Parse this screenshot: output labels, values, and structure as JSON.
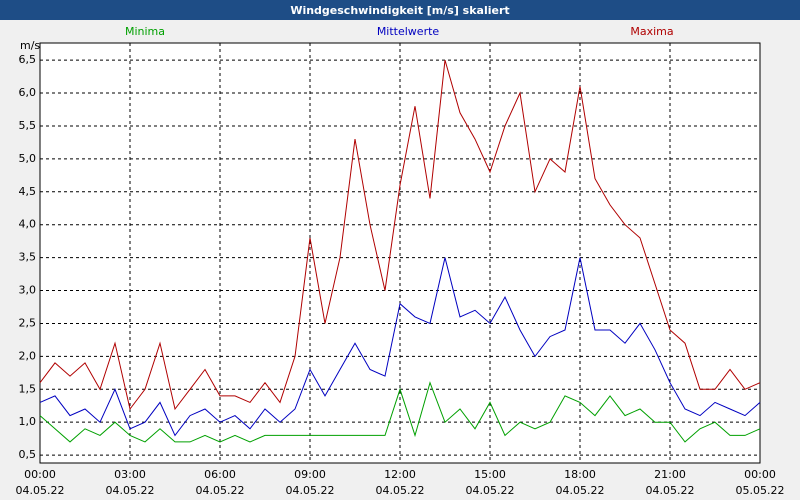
{
  "chart_data": {
    "type": "line",
    "title": "Windgeschwindigkeit [m/s] skaliert",
    "y_label": "m/s",
    "x": [
      0,
      0.5,
      1,
      1.5,
      2,
      2.5,
      3,
      3.5,
      4,
      4.5,
      5,
      5.5,
      6,
      6.5,
      7,
      7.5,
      8,
      8.5,
      9,
      9.5,
      10,
      10.5,
      11,
      11.5,
      12,
      12.5,
      13,
      13.5,
      14,
      14.5,
      15,
      15.5,
      16,
      16.5,
      17,
      17.5,
      18,
      18.5,
      19,
      19.5,
      20,
      20.5,
      21,
      21.5,
      22,
      22.5,
      23,
      23.5,
      24
    ],
    "series": [
      {
        "name": "Minima",
        "color": "#00a000",
        "values": [
          1.1,
          0.9,
          0.7,
          0.9,
          0.8,
          1.0,
          0.8,
          0.7,
          0.9,
          0.7,
          0.7,
          0.8,
          0.7,
          0.8,
          0.7,
          0.8,
          0.8,
          0.8,
          0.8,
          0.8,
          0.8,
          0.8,
          0.8,
          0.8,
          1.5,
          0.8,
          1.6,
          1.0,
          1.2,
          0.9,
          1.3,
          0.8,
          1.0,
          0.9,
          1.0,
          1.4,
          1.3,
          1.1,
          1.4,
          1.1,
          1.2,
          1.0,
          1.0,
          0.7,
          0.9,
          1.0,
          0.8,
          0.8,
          0.9
        ]
      },
      {
        "name": "Mittelwerte",
        "color": "#0000c0",
        "values": [
          1.3,
          1.4,
          1.1,
          1.2,
          1.0,
          1.5,
          0.9,
          1.0,
          1.3,
          0.8,
          1.1,
          1.2,
          1.0,
          1.1,
          0.9,
          1.2,
          1.0,
          1.2,
          1.8,
          1.4,
          1.8,
          2.2,
          1.8,
          1.7,
          2.8,
          2.6,
          2.5,
          3.5,
          2.6,
          2.7,
          2.5,
          2.9,
          2.4,
          2.0,
          2.3,
          2.4,
          3.5,
          2.4,
          2.4,
          2.2,
          2.5,
          2.1,
          1.6,
          1.2,
          1.1,
          1.3,
          1.2,
          1.1,
          1.3
        ]
      },
      {
        "name": "Maxima",
        "color": "#b00000",
        "values": [
          1.6,
          1.9,
          1.7,
          1.9,
          1.5,
          2.2,
          1.2,
          1.5,
          2.2,
          1.2,
          1.5,
          1.8,
          1.4,
          1.4,
          1.3,
          1.6,
          1.3,
          2.0,
          3.8,
          2.5,
          3.5,
          5.3,
          4.0,
          3.0,
          4.6,
          5.8,
          4.4,
          6.5,
          5.7,
          5.3,
          4.8,
          5.5,
          6.0,
          4.5,
          5.0,
          4.8,
          6.1,
          4.7,
          4.3,
          4.0,
          3.8,
          3.1,
          2.4,
          2.2,
          1.5,
          1.5,
          1.8,
          1.5,
          1.6
        ]
      }
    ],
    "xlim": [
      0,
      24
    ],
    "xticks": [
      {
        "value": 0,
        "label": [
          "00:00",
          "04.05.22"
        ]
      },
      {
        "value": 3,
        "label": [
          "03:00",
          "04.05.22"
        ]
      },
      {
        "value": 6,
        "label": [
          "06:00",
          "04.05.22"
        ]
      },
      {
        "value": 9,
        "label": [
          "09:00",
          "04.05.22"
        ]
      },
      {
        "value": 12,
        "label": [
          "12:00",
          "04.05.22"
        ]
      },
      {
        "value": 15,
        "label": [
          "15:00",
          "04.05.22"
        ]
      },
      {
        "value": 18,
        "label": [
          "18:00",
          "04.05.22"
        ]
      },
      {
        "value": 21,
        "label": [
          "21:00",
          "04.05.22"
        ]
      },
      {
        "value": 24,
        "label": [
          "00:00",
          "05.05.22"
        ]
      }
    ],
    "ylim": [
      0.38,
      6.76
    ],
    "yticks": [
      {
        "value": 0.5,
        "label": "0,5"
      },
      {
        "value": 1,
        "label": "1,0"
      },
      {
        "value": 1.5,
        "label": "1,5"
      },
      {
        "value": 2,
        "label": "2,0"
      },
      {
        "value": 2.5,
        "label": "2,5"
      },
      {
        "value": 3,
        "label": "3,0"
      },
      {
        "value": 3.5,
        "label": "3,5"
      },
      {
        "value": 4,
        "label": "4,0"
      },
      {
        "value": 4.5,
        "label": "4,5"
      },
      {
        "value": 5,
        "label": "5,0"
      },
      {
        "value": 5.5,
        "label": "5,5"
      },
      {
        "value": 6,
        "label": "6,0"
      },
      {
        "value": 6.5,
        "label": "6,5"
      }
    ],
    "grid": true
  }
}
